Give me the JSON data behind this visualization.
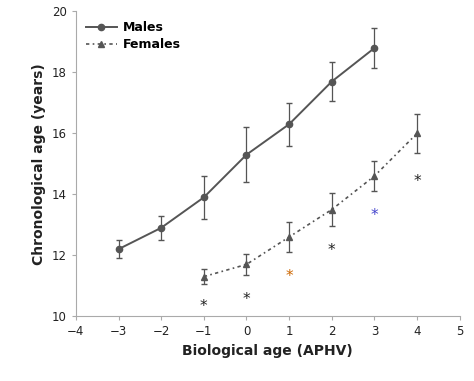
{
  "males_x": [
    -3,
    -2,
    -1,
    0,
    1,
    2,
    3
  ],
  "males_y": [
    12.2,
    12.9,
    13.9,
    15.3,
    16.3,
    17.7,
    18.8
  ],
  "males_yerr": [
    0.3,
    0.4,
    0.7,
    0.9,
    0.7,
    0.65,
    0.65
  ],
  "females_x": [
    -1,
    0,
    1,
    2,
    3,
    4
  ],
  "females_y": [
    11.3,
    11.7,
    12.6,
    13.5,
    14.6,
    16.0
  ],
  "females_yerr": [
    0.25,
    0.35,
    0.5,
    0.55,
    0.5,
    0.65
  ],
  "asterisk_x": [
    -1,
    0,
    1,
    2,
    3,
    4
  ],
  "asterisk_y_offsets": [
    -0.5,
    -0.55,
    -0.55,
    -0.55,
    -0.55,
    -0.7
  ],
  "asterisk_colors": [
    "#222222",
    "#222222",
    "#cc6600",
    "#222222",
    "#4444cc",
    "#222222"
  ],
  "xlabel": "Biological age (APHV)",
  "ylabel": "Chronological age (years)",
  "xlim": [
    -4,
    5
  ],
  "ylim": [
    10,
    20
  ],
  "xticks": [
    -4,
    -3,
    -2,
    -1,
    0,
    1,
    2,
    3,
    4,
    5
  ],
  "yticks": [
    10,
    12,
    14,
    16,
    18,
    20
  ],
  "legend_males": "Males",
  "legend_females": "Females",
  "line_color": "#555555",
  "background_color": "#ffffff"
}
